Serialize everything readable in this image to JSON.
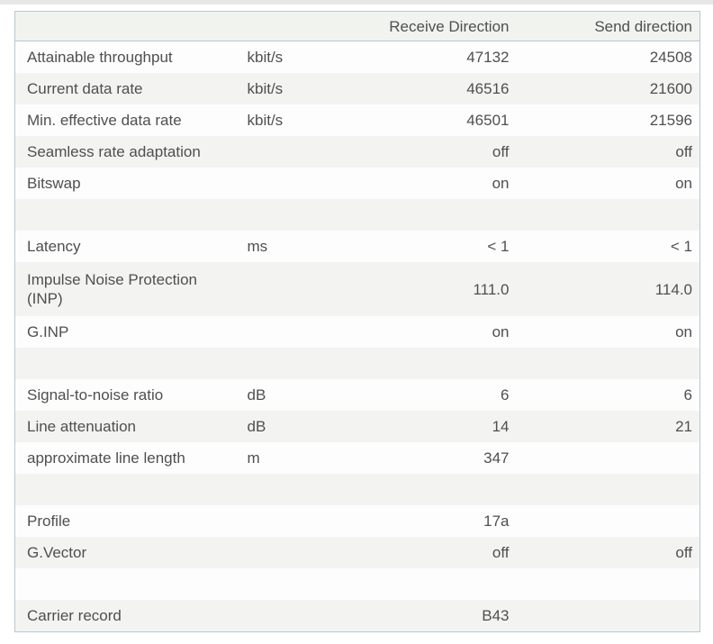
{
  "colors": {
    "page_background": "#ffffff",
    "top_strip": "#e7e7e7",
    "table_border": "#b7c8d1",
    "row_light": "#fdfdfd",
    "row_alt": "#f3f4f1",
    "header_background": "#f1f3ef",
    "text": "#4f4f4f"
  },
  "table": {
    "header": {
      "label_col": "",
      "unit_col": "",
      "receive": "Receive Direction",
      "send": "Send direction"
    },
    "rows": [
      {
        "label": "Attainable throughput",
        "unit": "kbit/s",
        "receive": "47132",
        "send": "24508"
      },
      {
        "label": "Current data rate",
        "unit": "kbit/s",
        "receive": "46516",
        "send": "21600"
      },
      {
        "label": "Min. effective data rate",
        "unit": "kbit/s",
        "receive": "46501",
        "send": "21596"
      },
      {
        "label": "Seamless rate adaptation",
        "unit": "",
        "receive": "off",
        "send": "off"
      },
      {
        "label": "Bitswap",
        "unit": "",
        "receive": "on",
        "send": "on"
      },
      {
        "label": "",
        "unit": "",
        "receive": "",
        "send": "",
        "blank": true
      },
      {
        "label": "Latency",
        "unit": "ms",
        "receive": "< 1",
        "send": "< 1"
      },
      {
        "label": "Impulse Noise Protection (INP)",
        "unit": "",
        "receive": "111.0",
        "send": "114.0",
        "tall": true
      },
      {
        "label": "G.INP",
        "unit": "",
        "receive": "on",
        "send": "on"
      },
      {
        "label": "",
        "unit": "",
        "receive": "",
        "send": "",
        "blank": true
      },
      {
        "label": "Signal-to-noise ratio",
        "unit": "dB",
        "receive": "6",
        "send": "6"
      },
      {
        "label": "Line attenuation",
        "unit": "dB",
        "receive": "14",
        "send": "21"
      },
      {
        "label": "approximate line length",
        "unit": "m",
        "receive": "347",
        "send": ""
      },
      {
        "label": "",
        "unit": "",
        "receive": "",
        "send": "",
        "blank": true
      },
      {
        "label": "Profile",
        "unit": "",
        "receive": "17a",
        "send": ""
      },
      {
        "label": "G.Vector",
        "unit": "",
        "receive": "off",
        "send": "off"
      },
      {
        "label": "",
        "unit": "",
        "receive": "",
        "send": "",
        "blank": true
      },
      {
        "label": "Carrier record",
        "unit": "",
        "receive": "B43",
        "send": ""
      }
    ]
  }
}
